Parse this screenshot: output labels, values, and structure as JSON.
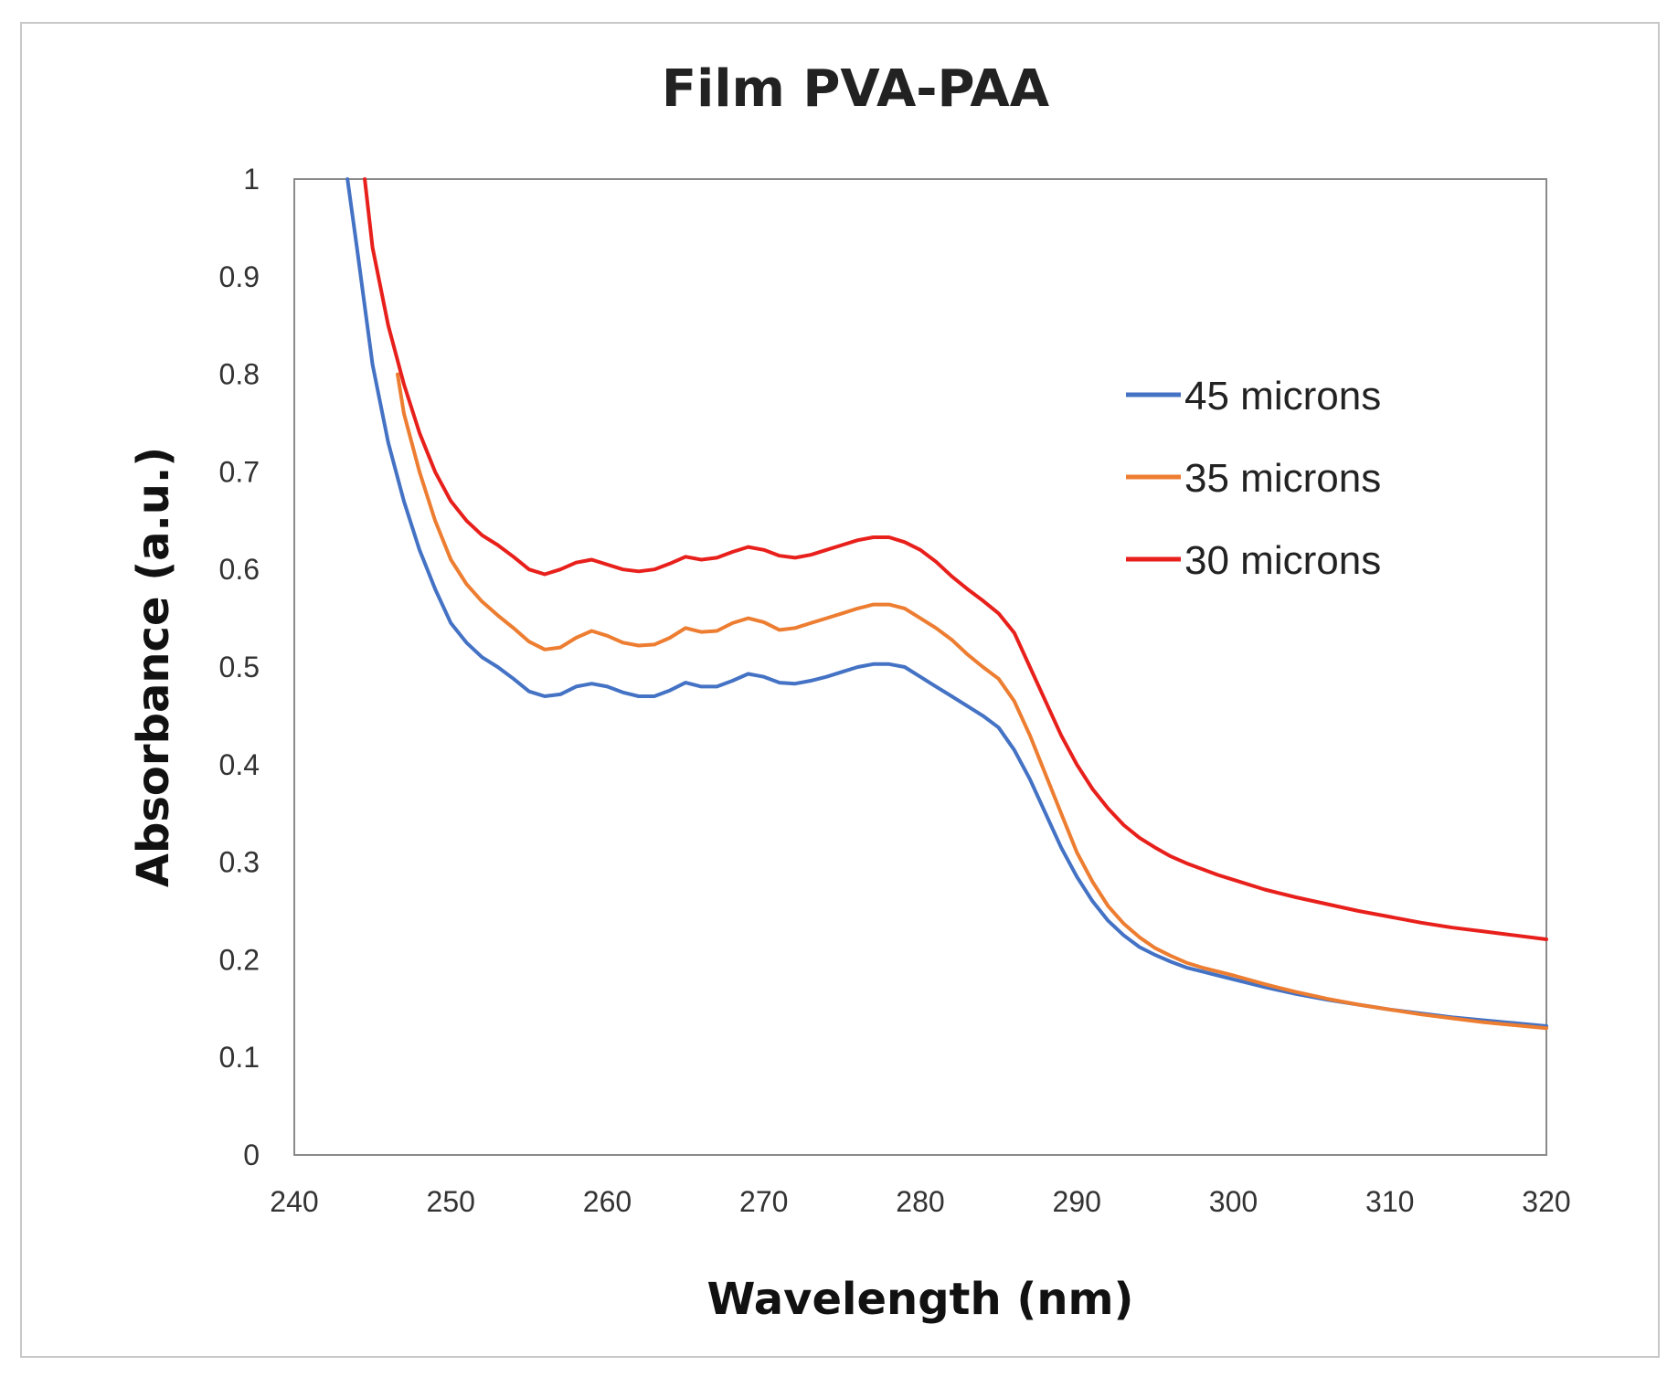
{
  "chart_data": {
    "type": "line",
    "title": "Film PVA-PAA",
    "xlabel": "Wavelength (nm)",
    "ylabel": "Absorbance (a.u.)",
    "xlim": [
      240,
      320
    ],
    "ylim": [
      0,
      1
    ],
    "xticks": [
      "240",
      "250",
      "260",
      "270",
      "280",
      "290",
      "300",
      "310",
      "320"
    ],
    "yticks": [
      "0",
      "0.1",
      "0.2",
      "0.3",
      "0.4",
      "0.5",
      "0.6",
      "0.7",
      "0.8",
      "0.9",
      "1"
    ],
    "legend_position": "top-right",
    "grid": false,
    "series": [
      {
        "name": "45 microns",
        "color": "#4472c4",
        "x": [
          243.4,
          244,
          245,
          246,
          247,
          248,
          249,
          250,
          251,
          252,
          253,
          254,
          255,
          256,
          257,
          258,
          259,
          260,
          261,
          262,
          263,
          264,
          265,
          266,
          267,
          268,
          269,
          270,
          271,
          272,
          273,
          274,
          275,
          276,
          277,
          278,
          279,
          280,
          281,
          282,
          283,
          284,
          285,
          286,
          287,
          288,
          289,
          290,
          291,
          292,
          293,
          294,
          295,
          296,
          297,
          298,
          299,
          300,
          302,
          304,
          306,
          308,
          310,
          312,
          314,
          316,
          318,
          320
        ],
        "values": [
          1.0,
          0.93,
          0.81,
          0.73,
          0.67,
          0.62,
          0.58,
          0.545,
          0.525,
          0.51,
          0.5,
          0.488,
          0.475,
          0.47,
          0.472,
          0.48,
          0.483,
          0.48,
          0.474,
          0.47,
          0.47,
          0.476,
          0.484,
          0.48,
          0.48,
          0.486,
          0.493,
          0.49,
          0.484,
          0.483,
          0.486,
          0.49,
          0.495,
          0.5,
          0.503,
          0.503,
          0.5,
          0.49,
          0.48,
          0.47,
          0.46,
          0.45,
          0.438,
          0.415,
          0.385,
          0.35,
          0.315,
          0.285,
          0.26,
          0.24,
          0.225,
          0.213,
          0.205,
          0.198,
          0.192,
          0.188,
          0.184,
          0.18,
          0.172,
          0.165,
          0.159,
          0.154,
          0.149,
          0.145,
          0.141,
          0.138,
          0.135,
          0.132
        ]
      },
      {
        "name": "35 microns",
        "color": "#ed7d31",
        "x": [
          246.6,
          247,
          248,
          249,
          250,
          251,
          252,
          253,
          254,
          255,
          256,
          257,
          258,
          259,
          260,
          261,
          262,
          263,
          264,
          265,
          266,
          267,
          268,
          269,
          270,
          271,
          272,
          273,
          274,
          275,
          276,
          277,
          278,
          279,
          280,
          281,
          282,
          283,
          284,
          285,
          286,
          287,
          288,
          289,
          290,
          291,
          292,
          293,
          294,
          295,
          296,
          297,
          298,
          299,
          300,
          302,
          304,
          306,
          308,
          310,
          312,
          314,
          316,
          318,
          320
        ],
        "values": [
          0.8,
          0.76,
          0.7,
          0.65,
          0.61,
          0.585,
          0.567,
          0.553,
          0.54,
          0.526,
          0.518,
          0.52,
          0.53,
          0.537,
          0.532,
          0.525,
          0.522,
          0.523,
          0.53,
          0.54,
          0.536,
          0.537,
          0.545,
          0.55,
          0.546,
          0.538,
          0.54,
          0.545,
          0.55,
          0.555,
          0.56,
          0.564,
          0.564,
          0.56,
          0.55,
          0.54,
          0.528,
          0.513,
          0.5,
          0.488,
          0.465,
          0.43,
          0.39,
          0.35,
          0.31,
          0.28,
          0.255,
          0.237,
          0.223,
          0.212,
          0.204,
          0.197,
          0.192,
          0.188,
          0.184,
          0.175,
          0.167,
          0.16,
          0.154,
          0.149,
          0.144,
          0.14,
          0.136,
          0.133,
          0.13
        ]
      },
      {
        "name": "30 microns",
        "color": "#e8201c",
        "x": [
          244.5,
          245,
          246,
          247,
          248,
          249,
          250,
          251,
          252,
          253,
          254,
          255,
          256,
          257,
          258,
          259,
          260,
          261,
          262,
          263,
          264,
          265,
          266,
          267,
          268,
          269,
          270,
          271,
          272,
          273,
          274,
          275,
          276,
          277,
          278,
          279,
          280,
          281,
          282,
          283,
          284,
          285,
          286,
          287,
          288,
          289,
          290,
          291,
          292,
          293,
          294,
          295,
          296,
          297,
          298,
          299,
          300,
          302,
          304,
          306,
          308,
          310,
          312,
          314,
          316,
          318,
          320
        ],
        "values": [
          1.0,
          0.93,
          0.85,
          0.79,
          0.74,
          0.7,
          0.67,
          0.65,
          0.635,
          0.625,
          0.613,
          0.6,
          0.595,
          0.6,
          0.607,
          0.61,
          0.605,
          0.6,
          0.598,
          0.6,
          0.606,
          0.613,
          0.61,
          0.612,
          0.618,
          0.623,
          0.62,
          0.614,
          0.612,
          0.615,
          0.62,
          0.625,
          0.63,
          0.633,
          0.633,
          0.628,
          0.62,
          0.608,
          0.593,
          0.58,
          0.568,
          0.555,
          0.535,
          0.5,
          0.465,
          0.43,
          0.4,
          0.375,
          0.355,
          0.338,
          0.325,
          0.315,
          0.306,
          0.299,
          0.293,
          0.287,
          0.282,
          0.272,
          0.264,
          0.257,
          0.25,
          0.244,
          0.238,
          0.233,
          0.229,
          0.225,
          0.221
        ]
      }
    ]
  }
}
